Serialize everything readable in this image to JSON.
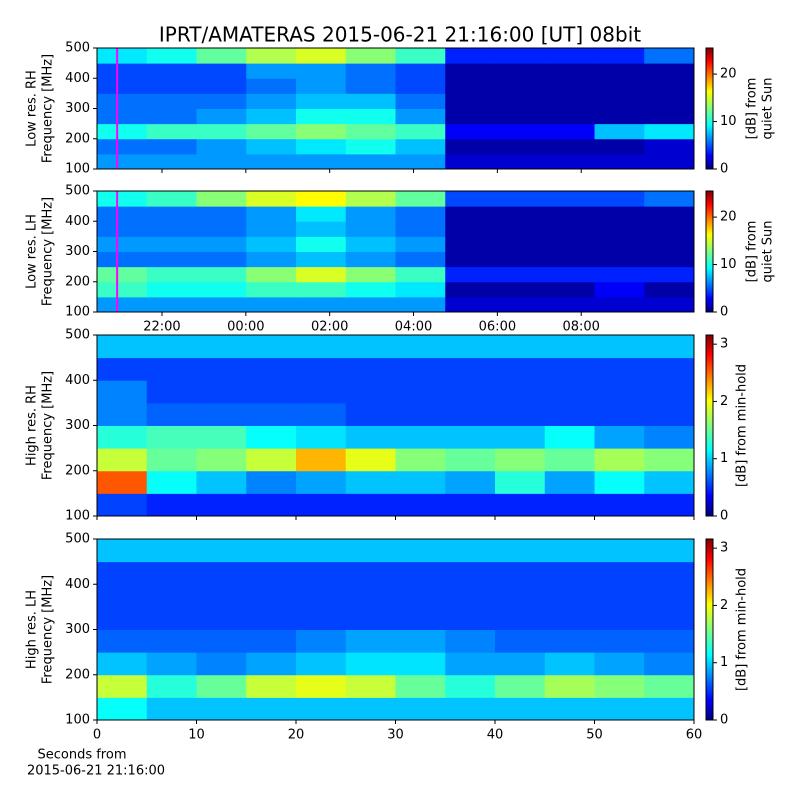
{
  "title": "IPRT/AMATERAS 2015-06-21 21:16:00 [UT]   08bit",
  "chart_data": [
    {
      "type": "heatmap",
      "ylabel": [
        "Low res. RH",
        "Frequency [MHz]"
      ],
      "xlim": [
        20.45,
        34.69
      ],
      "xticks": [
        {
          "value": 22,
          "label": "22:00"
        },
        {
          "value": 24,
          "label": "00:00"
        },
        {
          "value": 26,
          "label": "02:00"
        },
        {
          "value": 28,
          "label": "04:00"
        },
        {
          "value": 30,
          "label": "06:00"
        },
        {
          "value": 32,
          "label": "08:00"
        }
      ],
      "show_xtick_labels": false,
      "ylim": [
        100,
        500
      ],
      "yticks": [
        100,
        200,
        300,
        400,
        500
      ],
      "marker_line": {
        "x": 20.93,
        "color": "#ff00ff"
      },
      "colorbar": {
        "label": [
          "[dB] from",
          "quiet Sun"
        ],
        "lim": [
          0,
          25.5
        ],
        "ticks": [
          0,
          10,
          20
        ]
      },
      "z": [
        [
          7,
          7,
          7,
          7,
          7,
          7,
          7,
          2,
          2,
          2,
          2,
          2
        ],
        [
          6,
          6,
          7,
          8,
          9,
          10,
          8,
          1,
          1,
          1,
          1,
          2
        ],
        [
          10,
          11,
          11,
          12,
          13,
          12,
          11,
          3,
          3,
          3,
          8,
          9
        ],
        [
          6,
          6,
          7,
          8,
          10,
          10,
          7,
          1,
          1,
          1,
          1,
          1
        ],
        [
          6,
          6,
          6,
          7,
          8,
          8,
          6,
          1,
          1,
          1,
          1,
          1
        ],
        [
          5,
          5,
          5,
          6,
          7,
          6,
          5,
          1,
          1,
          1,
          1,
          1
        ],
        [
          5,
          5,
          5,
          7,
          7,
          6,
          5,
          1,
          1,
          1,
          1,
          1
        ],
        [
          9,
          10,
          12,
          14,
          15,
          13,
          11,
          4,
          4,
          4,
          4,
          6
        ]
      ]
    },
    {
      "type": "heatmap",
      "ylabel": [
        "Low res. LH",
        "Frequency [MHz]"
      ],
      "xlim": [
        20.45,
        34.69
      ],
      "xticks": [
        {
          "value": 22,
          "label": "22:00"
        },
        {
          "value": 24,
          "label": "00:00"
        },
        {
          "value": 26,
          "label": "02:00"
        },
        {
          "value": 28,
          "label": "04:00"
        },
        {
          "value": 30,
          "label": "06:00"
        },
        {
          "value": 32,
          "label": "08:00"
        }
      ],
      "show_xtick_labels": true,
      "ylim": [
        100,
        500
      ],
      "yticks": [
        100,
        200,
        300,
        400,
        500
      ],
      "marker_line": {
        "x": 20.93,
        "color": "#ff00ff"
      },
      "colorbar": {
        "label": [
          "[dB] from",
          "quiet Sun"
        ],
        "lim": [
          0,
          25.5
        ],
        "ticks": [
          0,
          10,
          20
        ]
      },
      "z": [
        [
          7,
          7,
          7,
          7,
          7,
          7,
          7,
          2,
          2,
          2,
          2,
          2
        ],
        [
          11,
          10,
          10,
          11,
          11,
          10,
          9,
          1,
          1,
          1,
          3,
          1
        ],
        [
          12,
          11,
          11,
          13,
          15,
          13,
          11,
          4,
          4,
          4,
          4,
          4
        ],
        [
          6,
          6,
          6,
          7,
          8,
          7,
          6,
          1,
          1,
          1,
          1,
          1
        ],
        [
          7,
          7,
          7,
          8,
          10,
          8,
          7,
          1,
          1,
          1,
          1,
          1
        ],
        [
          6,
          6,
          6,
          7,
          8,
          7,
          6,
          1,
          1,
          1,
          1,
          1
        ],
        [
          6,
          6,
          6,
          7,
          9,
          7,
          6,
          1,
          1,
          1,
          1,
          1
        ],
        [
          10,
          11,
          13,
          15,
          16,
          14,
          12,
          5,
          5,
          5,
          5,
          6
        ]
      ]
    },
    {
      "type": "heatmap",
      "ylabel": [
        "High res. RH",
        "Frequency [MHz]"
      ],
      "xlim": [
        0,
        60
      ],
      "xticks": [
        0,
        10,
        20,
        30,
        40,
        50,
        60
      ],
      "show_xtick_labels": false,
      "ylim": [
        100,
        500
      ],
      "yticks": [
        100,
        200,
        300,
        400,
        500
      ],
      "colorbar": {
        "label": [
          "[dB] from min-hold"
        ],
        "lim": [
          0,
          3.16
        ],
        "ticks": [
          0,
          1,
          2,
          3
        ]
      },
      "z": [
        [
          0.6,
          0.5,
          0.5,
          0.5,
          0.5,
          0.5,
          0.5,
          0.5,
          0.5,
          0.5,
          0.5,
          0.5
        ],
        [
          2.5,
          1.2,
          1.0,
          0.8,
          0.9,
          1.0,
          1.0,
          0.9,
          1.3,
          0.9,
          1.2,
          1.0
        ],
        [
          1.8,
          1.5,
          1.6,
          1.8,
          2.2,
          1.9,
          1.6,
          1.5,
          1.6,
          1.5,
          1.7,
          1.6
        ],
        [
          1.3,
          1.4,
          1.4,
          1.2,
          1.1,
          1.0,
          1.0,
          1.0,
          1.0,
          1.2,
          0.9,
          0.8
        ],
        [
          0.8,
          0.7,
          0.7,
          0.7,
          0.7,
          0.6,
          0.6,
          0.6,
          0.6,
          0.6,
          0.6,
          0.6
        ],
        [
          0.8,
          0.6,
          0.6,
          0.6,
          0.6,
          0.6,
          0.6,
          0.6,
          0.6,
          0.6,
          0.6,
          0.6
        ],
        [
          0.6,
          0.6,
          0.6,
          0.6,
          0.6,
          0.6,
          0.6,
          0.6,
          0.6,
          0.6,
          0.6,
          0.6
        ],
        [
          1.0,
          1.0,
          1.0,
          1.0,
          1.0,
          1.0,
          1.0,
          1.0,
          1.0,
          1.0,
          1.0,
          1.0
        ]
      ]
    },
    {
      "type": "heatmap",
      "ylabel": [
        "High res. LH",
        "Frequency [MHz]"
      ],
      "xlabel": [
        "Seconds from",
        "2015-06-21 21:16:00"
      ],
      "xlim": [
        0,
        60
      ],
      "xticks": [
        0,
        10,
        20,
        30,
        40,
        50,
        60
      ],
      "show_xtick_labels": true,
      "ylim": [
        100,
        500
      ],
      "yticks": [
        100,
        200,
        300,
        400,
        500
      ],
      "colorbar": {
        "label": [
          "[dB] from min-hold"
        ],
        "lim": [
          0,
          3.16
        ],
        "ticks": [
          0,
          1,
          2,
          3
        ]
      },
      "z": [
        [
          1.2,
          1.0,
          1.0,
          1.0,
          1.0,
          1.0,
          1.0,
          1.0,
          1.0,
          1.0,
          1.0,
          1.0
        ],
        [
          1.8,
          1.3,
          1.5,
          1.8,
          1.9,
          1.8,
          1.5,
          1.3,
          1.5,
          1.7,
          1.6,
          1.5
        ],
        [
          1.0,
          0.9,
          0.8,
          0.9,
          1.0,
          1.1,
          1.1,
          0.9,
          0.9,
          1.0,
          0.9,
          0.8
        ],
        [
          0.7,
          0.7,
          0.7,
          0.7,
          0.8,
          0.9,
          0.9,
          0.8,
          0.7,
          0.7,
          0.7,
          0.7
        ],
        [
          0.6,
          0.6,
          0.6,
          0.6,
          0.6,
          0.6,
          0.6,
          0.6,
          0.6,
          0.6,
          0.6,
          0.6
        ],
        [
          0.6,
          0.6,
          0.6,
          0.6,
          0.6,
          0.6,
          0.6,
          0.6,
          0.6,
          0.6,
          0.6,
          0.6
        ],
        [
          0.6,
          0.6,
          0.6,
          0.6,
          0.6,
          0.6,
          0.6,
          0.6,
          0.6,
          0.6,
          0.6,
          0.6
        ],
        [
          1.0,
          1.0,
          1.0,
          1.0,
          1.0,
          1.0,
          1.0,
          1.0,
          1.0,
          1.0,
          1.0,
          1.0
        ]
      ]
    }
  ]
}
